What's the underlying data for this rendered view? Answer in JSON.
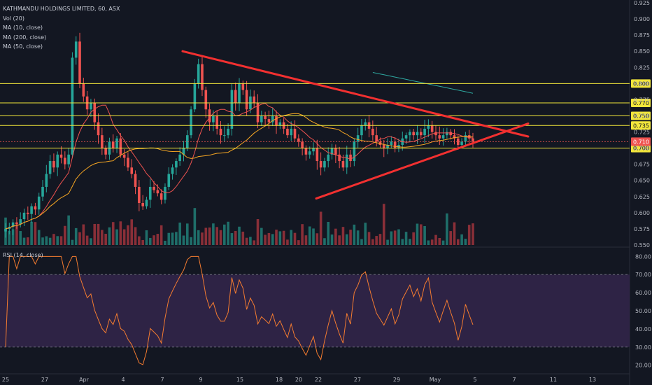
{
  "legend": {
    "symbol": "KATHMANDU HOLDINGS LIMITED, 60, ASX",
    "vol": "Vol (20)",
    "ma10": "MA (10, close)",
    "ma200": "MA (200, close)",
    "ma50": "MA (50, close)",
    "rsi": "RSI (14, close)"
  },
  "colors": {
    "background": "#131722",
    "up": "#26a69a",
    "down": "#ef5350",
    "vol_up": "#1f6f6a",
    "vol_down": "#8a2f38",
    "ma10": "#ef5350",
    "ma50": "#f6a623",
    "ma200": "#2ea8a0",
    "hline": "#f2e63b",
    "trendline": "#f23030",
    "rsi_line": "#f57c30",
    "rsi_band": "#2e2345",
    "price_tag_red": "#ef5350"
  },
  "chart_data": {
    "type": "candlestick",
    "title": "KATHMANDU HOLDINGS LIMITED, 60, ASX",
    "price_axis": {
      "ylim": [
        0.55,
        0.925
      ],
      "ticks": [
        "0.550",
        "0.575",
        "0.600",
        "0.625",
        "0.650",
        "0.675",
        "0.700",
        "0.725",
        "0.750",
        "0.775",
        "0.800",
        "0.825",
        "0.850",
        "0.875",
        "0.900",
        "0.925"
      ]
    },
    "x_axis": {
      "labels": [
        "25",
        "27",
        "Apr",
        "4",
        "7",
        "9",
        "15",
        "18",
        "20",
        "22",
        "27",
        "29",
        "May",
        "5",
        "7",
        "11",
        "13"
      ]
    },
    "horizontal_levels": [
      {
        "value": 0.8,
        "label": "0.800"
      },
      {
        "value": 0.77,
        "label": "0.770"
      },
      {
        "value": 0.75,
        "label": "0.750"
      },
      {
        "value": 0.735,
        "label": "0.735"
      },
      {
        "value": 0.7,
        "label": "0.700"
      }
    ],
    "last_price": {
      "value": 0.71,
      "label": "0.710"
    },
    "trendlines": [
      {
        "name": "resistance",
        "from": {
          "t": 0.28,
          "p": 0.85
        },
        "to": {
          "t": 0.81,
          "p": 0.718
        }
      },
      {
        "name": "support",
        "from": {
          "t": 0.485,
          "p": 0.622
        },
        "to": {
          "t": 0.81,
          "p": 0.738
        }
      }
    ],
    "closes": [
      0.575,
      0.578,
      0.585,
      0.582,
      0.59,
      0.6,
      0.598,
      0.61,
      0.605,
      0.625,
      0.64,
      0.66,
      0.68,
      0.67,
      0.69,
      0.685,
      0.675,
      0.69,
      0.84,
      0.865,
      0.8,
      0.78,
      0.76,
      0.77,
      0.74,
      0.72,
      0.7,
      0.69,
      0.71,
      0.7,
      0.715,
      0.69,
      0.685,
      0.67,
      0.66,
      0.64,
      0.615,
      0.61,
      0.62,
      0.64,
      0.635,
      0.63,
      0.62,
      0.64,
      0.66,
      0.67,
      0.68,
      0.69,
      0.7,
      0.72,
      0.76,
      0.8,
      0.83,
      0.79,
      0.76,
      0.74,
      0.75,
      0.73,
      0.72,
      0.72,
      0.73,
      0.79,
      0.77,
      0.8,
      0.79,
      0.76,
      0.78,
      0.77,
      0.74,
      0.75,
      0.745,
      0.74,
      0.75,
      0.735,
      0.74,
      0.73,
      0.72,
      0.73,
      0.715,
      0.71,
      0.7,
      0.69,
      0.695,
      0.7,
      0.68,
      0.67,
      0.68,
      0.69,
      0.7,
      0.69,
      0.68,
      0.67,
      0.69,
      0.68,
      0.71,
      0.72,
      0.735,
      0.74,
      0.73,
      0.72,
      0.71,
      0.705,
      0.7,
      0.705,
      0.71,
      0.7,
      0.705,
      0.715,
      0.72,
      0.725,
      0.72,
      0.725,
      0.72,
      0.73,
      0.735,
      0.725,
      0.72,
      0.715,
      0.72,
      0.725,
      0.72,
      0.715,
      0.705,
      0.71,
      0.72,
      0.715,
      0.71
    ],
    "rsi": {
      "ylim": [
        16,
        84
      ],
      "band": [
        30,
        70
      ],
      "ticks": [
        "20.00",
        "30.00",
        "40.00",
        "50.00",
        "60.00",
        "70.00",
        "80.00"
      ]
    }
  }
}
